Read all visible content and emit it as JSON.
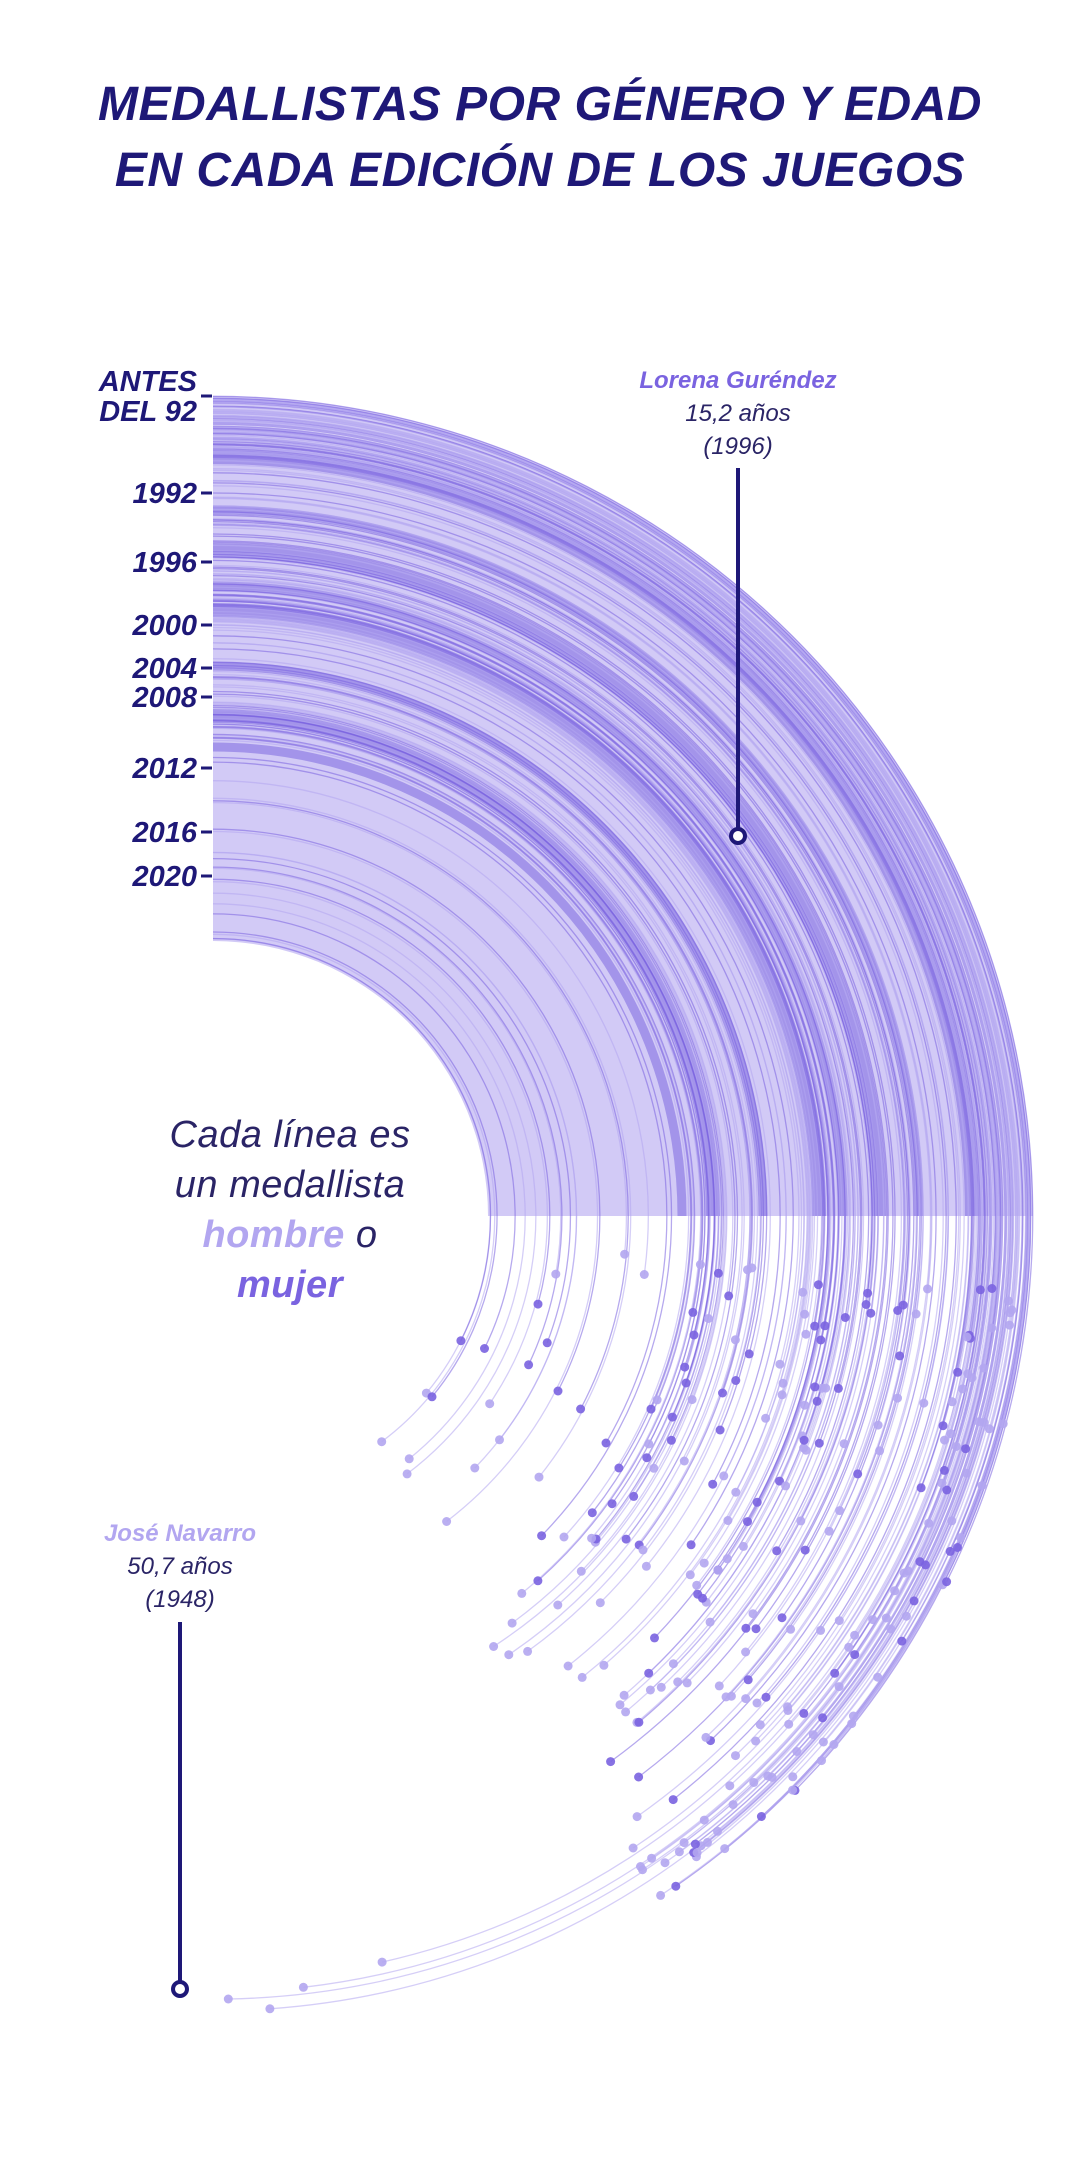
{
  "title_lines": [
    "MEDALLISTAS POR GÉNERO Y EDAD",
    "EN CADA EDICIÓN DE LOS JUEGOS"
  ],
  "legend": {
    "line1": "Cada línea es",
    "line2": "un medallista",
    "men": "hombre",
    "or": "o",
    "women": "mujer"
  },
  "colors": {
    "title": "#1e1877",
    "men": "#b2a6f0",
    "women": "#7a63e0",
    "annotation": "#1e1877"
  },
  "chart_data": {
    "type": "radial-lines",
    "editions": [
      {
        "label_lines": [
          "ANTES",
          "DEL 92"
        ],
        "year": "Antes del 92"
      },
      {
        "label_lines": [
          "1992"
        ],
        "year": "1992"
      },
      {
        "label_lines": [
          "1996"
        ],
        "year": "1996"
      },
      {
        "label_lines": [
          "2000"
        ],
        "year": "2000"
      },
      {
        "label_lines": [
          "2004"
        ],
        "year": "2004"
      },
      {
        "label_lines": [
          "2008"
        ],
        "year": "2008"
      },
      {
        "label_lines": [
          "2012"
        ],
        "year": "2012"
      },
      {
        "label_lines": [
          "2016"
        ],
        "year": "2016"
      },
      {
        "label_lines": [
          "2020"
        ],
        "year": "2020"
      }
    ],
    "annotations": [
      {
        "name": "Lorena Guréndez",
        "age": "15,2 años",
        "year": "(1996)",
        "age_value": 15.2,
        "gender": "mujer"
      },
      {
        "name": "José Navarro",
        "age": "50,7 años",
        "year": "(1948)",
        "age_value": 50.7,
        "gender": "hombre"
      }
    ]
  }
}
